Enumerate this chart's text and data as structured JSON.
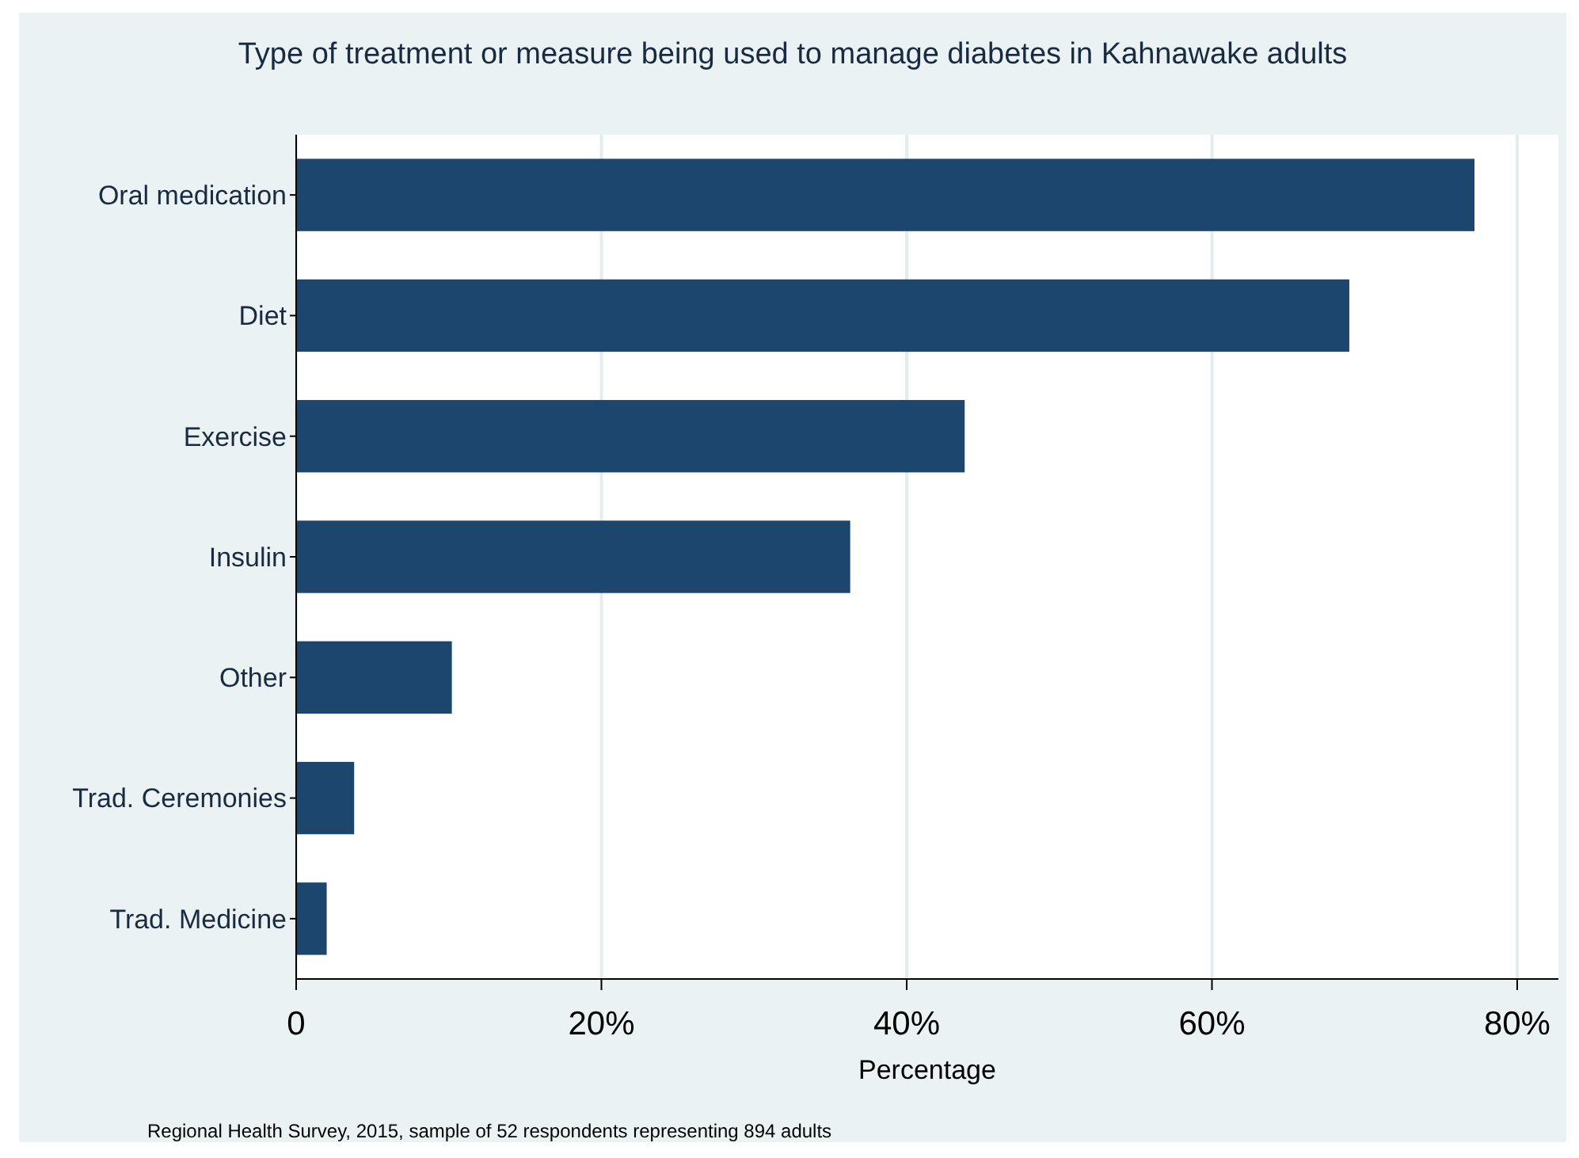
{
  "chart_data": {
    "type": "bar",
    "orientation": "horizontal",
    "title": "Type of treatment or measure being used to manage diabetes in Kahnawake adults",
    "xlabel": "Percentage",
    "categories": [
      "Oral medication",
      "Diet",
      "Exercise",
      "Insulin",
      "Other",
      "Trad. Ceremonies",
      "Trad. Medicine"
    ],
    "values": [
      77.2,
      69.0,
      43.8,
      36.3,
      10.2,
      3.8,
      2.0
    ],
    "color": "#1c466e",
    "xlim": [
      0,
      82.7
    ],
    "xticks": [
      0,
      {
        "value": 20,
        "label": "20%"
      },
      {
        "value": 40,
        "label": "40%"
      },
      {
        "value": 60,
        "label": "60%"
      },
      {
        "value": 80,
        "label": "80%"
      }
    ],
    "grid": "x",
    "annotations": [
      "Regional Health Survey, 2015, sample of 52 respondents representing 894 adults"
    ]
  }
}
